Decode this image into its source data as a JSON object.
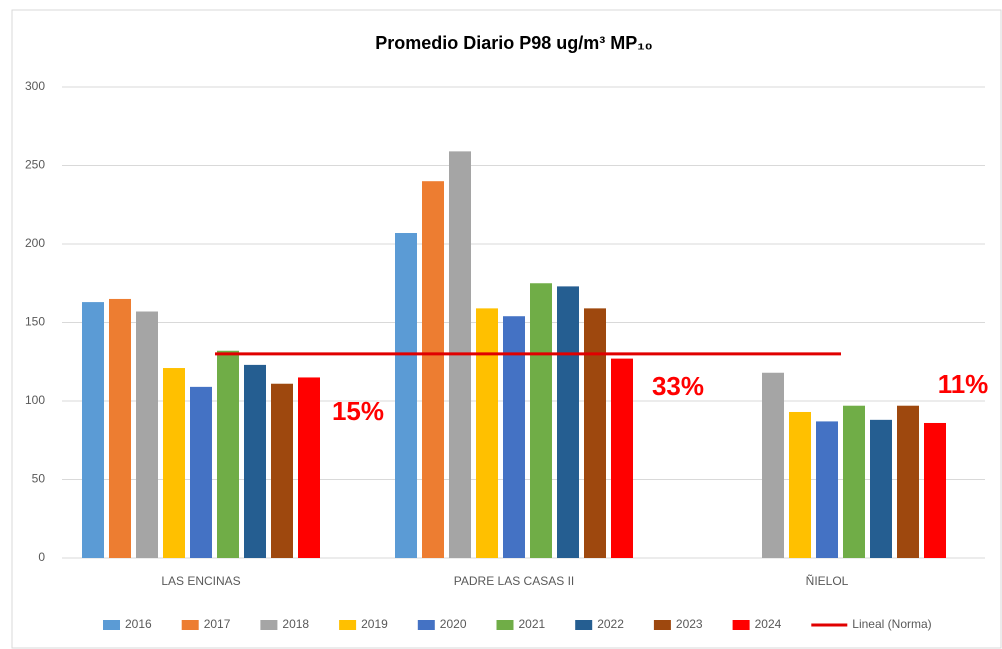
{
  "chart_data": {
    "type": "bar",
    "title": "Promedio Diario P98 ug/m³ MP₁₀",
    "categories": [
      "LAS ENCINAS",
      "PADRE LAS CASAS II",
      "ÑIELOL"
    ],
    "series": [
      {
        "name": "2016",
        "color": "#5b9bd5",
        "values": [
          163,
          207,
          null
        ]
      },
      {
        "name": "2017",
        "color": "#ed7d31",
        "values": [
          165,
          240,
          null
        ]
      },
      {
        "name": "2018",
        "color": "#a5a5a5",
        "values": [
          157,
          259,
          118
        ]
      },
      {
        "name": "2019",
        "color": "#ffc000",
        "values": [
          121,
          159,
          93
        ]
      },
      {
        "name": "2020",
        "color": "#4472c4",
        "values": [
          109,
          154,
          87
        ]
      },
      {
        "name": "2021",
        "color": "#70ad47",
        "values": [
          132,
          175,
          97
        ]
      },
      {
        "name": "2022",
        "color": "#255e91",
        "values": [
          123,
          173,
          88
        ]
      },
      {
        "name": "2023",
        "color": "#9e480e",
        "values": [
          111,
          159,
          97
        ]
      },
      {
        "name": "2024",
        "color": "#ff0000",
        "values": [
          115,
          127,
          86
        ]
      },
      {
        "name": "Lineal (Norma)",
        "color": "#e00000",
        "type": "line",
        "values": [
          130,
          130,
          130
        ]
      }
    ],
    "annotations": [
      "15%",
      "33%",
      "11%"
    ],
    "ylim": [
      0,
      300
    ],
    "yticks": [
      0,
      50,
      100,
      150,
      200,
      250,
      300
    ],
    "grid": true,
    "legend": "bottom"
  }
}
